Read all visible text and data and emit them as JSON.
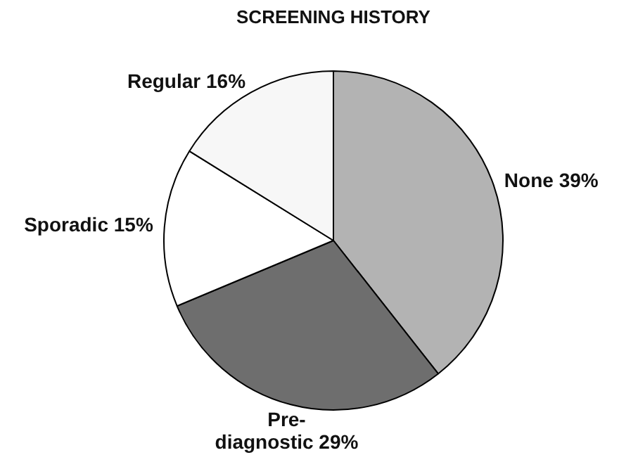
{
  "chart_data": {
    "type": "pie",
    "title": "SCREENING HISTORY",
    "categories": [
      "None",
      "Pre-diagnostic",
      "Sporadic",
      "Regular"
    ],
    "values": [
      39,
      29,
      15,
      16
    ],
    "value_labels": [
      "39%",
      "29%",
      "15%",
      "16%"
    ],
    "colors": [
      "#b3b3b3",
      "#6e6e6e",
      "#ffffff",
      "#f7f7f7"
    ],
    "legend": false
  }
}
